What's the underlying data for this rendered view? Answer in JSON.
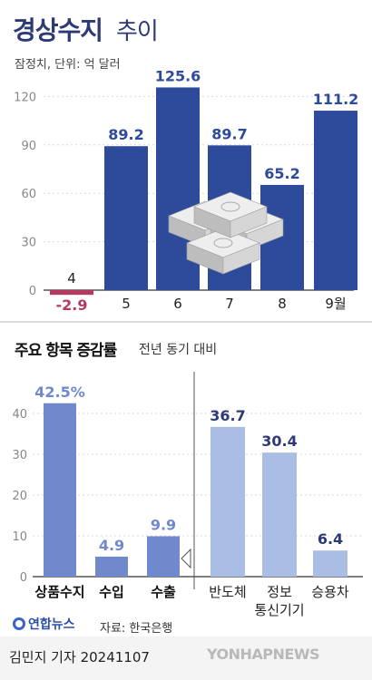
{
  "header": {
    "title_bold": "경상수지",
    "title_light": "추이",
    "subtitle": "잠정치, 단위: 억 달러"
  },
  "section2": {
    "title": "주요 항목 증감률",
    "note": "전년 동기 대비"
  },
  "footer": {
    "logo_text": "연합뉴스",
    "source": "자료: 한국은행",
    "reporter": "김민지 기자",
    "date": "20241107",
    "watermark": "YONHAPNEWS"
  },
  "colors": {
    "bar_main": "#2e4a9b",
    "bar_negative": "#b33a5e",
    "bar_goods": "#6f89cc",
    "bar_products": "#aabde5",
    "axis_text": "#888888",
    "grid": "#d9d9d9"
  },
  "chart_data": [
    {
      "type": "bar",
      "title": "경상수지 추이",
      "subtitle": "잠정치, 단위: 억 달러",
      "categories": [
        "4",
        "5",
        "6",
        "7",
        "8",
        "9월"
      ],
      "values": [
        -2.9,
        89.2,
        125.6,
        89.7,
        65.2,
        111.2
      ],
      "value_labels": [
        "-2.9",
        "89.2",
        "125.6",
        "89.7",
        "65.2",
        "111.2"
      ],
      "y_ticks": [
        0,
        30,
        60,
        90,
        120
      ],
      "ylim": [
        -5,
        130
      ],
      "grid": true
    },
    {
      "type": "bar",
      "title": "주요 항목 증감률",
      "subtitle": "전년 동기 대비",
      "categories": [
        "상품수지",
        "수입",
        "수출"
      ],
      "values": [
        42.5,
        4.9,
        9.9
      ],
      "value_labels": [
        "42.5%",
        "4.9",
        "9.9"
      ],
      "y_ticks": [
        0,
        10,
        20,
        30,
        40
      ],
      "ylim": [
        0,
        45
      ],
      "grid": true
    },
    {
      "type": "bar",
      "categories": [
        "반도체",
        "정보\n통신기기",
        "승용차"
      ],
      "values": [
        36.7,
        30.4,
        6.4
      ],
      "value_labels": [
        "36.7",
        "30.4",
        "6.4"
      ],
      "grid": true
    }
  ]
}
